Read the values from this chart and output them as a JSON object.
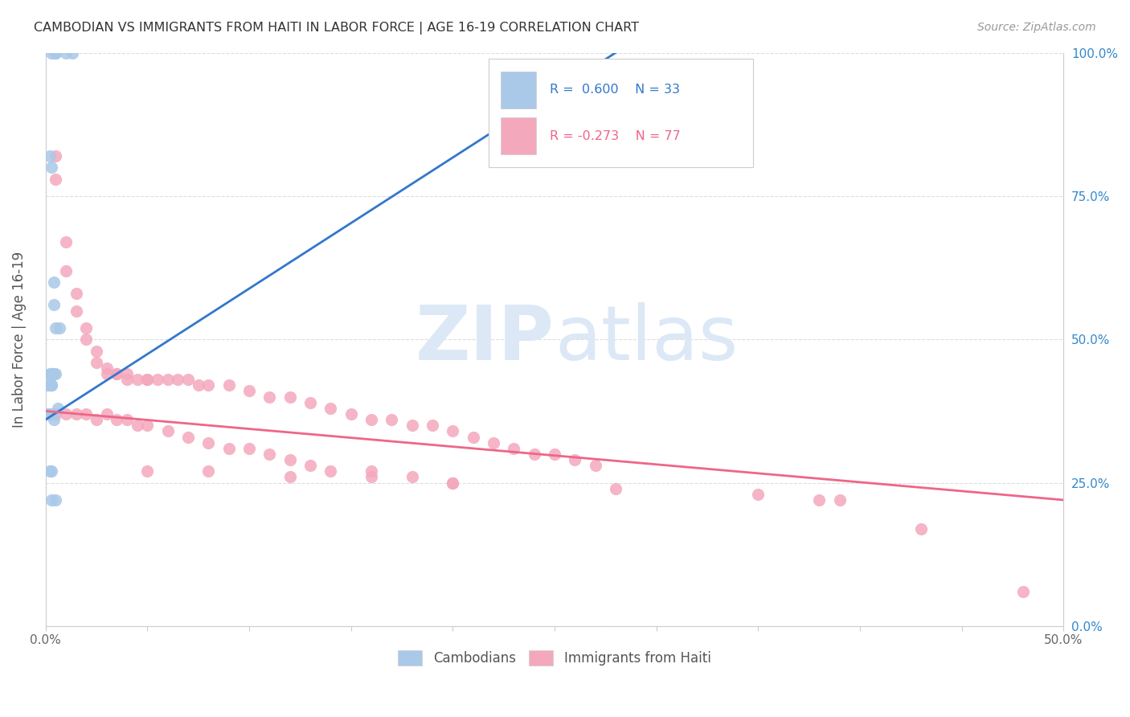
{
  "title": "CAMBODIAN VS IMMIGRANTS FROM HAITI IN LABOR FORCE | AGE 16-19 CORRELATION CHART",
  "source": "Source: ZipAtlas.com",
  "ylabel": "In Labor Force | Age 16-19",
  "xlim": [
    0.0,
    0.5
  ],
  "ylim": [
    0.0,
    1.0
  ],
  "xticks": [
    0.0,
    0.05,
    0.1,
    0.15,
    0.2,
    0.25,
    0.3,
    0.35,
    0.4,
    0.45,
    0.5
  ],
  "xtick_labels": [
    "0.0%",
    "",
    "",
    "",
    "",
    "",
    "",
    "",
    "",
    "",
    "50.0%"
  ],
  "yticks": [
    0.0,
    0.25,
    0.5,
    0.75,
    1.0
  ],
  "ytick_labels": [
    "",
    "",
    "",
    "",
    ""
  ],
  "ytick_labels_right": [
    "0.0%",
    "25.0%",
    "50.0%",
    "75.0%",
    "100.0%"
  ],
  "cambodian_color": "#aac8e8",
  "haiti_color": "#f4a8bc",
  "cambodian_line_color": "#3377cc",
  "haiti_line_color": "#ee6688",
  "legend_R_cambodian": "R =  0.600",
  "legend_N_cambodian": "N = 33",
  "legend_R_haiti": "R = -0.273",
  "legend_N_haiti": "N = 77",
  "camb_line_x0": 0.0,
  "camb_line_y0": 0.36,
  "camb_line_x1": 0.28,
  "camb_line_y1": 1.0,
  "haiti_line_x0": 0.0,
  "haiti_line_y0": 0.375,
  "haiti_line_x1": 0.5,
  "haiti_line_y1": 0.22,
  "cambodians_x": [
    0.003,
    0.005,
    0.005,
    0.01,
    0.013,
    0.002,
    0.003,
    0.004,
    0.004,
    0.005,
    0.007,
    0.002,
    0.003,
    0.003,
    0.003,
    0.004,
    0.004,
    0.005,
    0.001,
    0.002,
    0.003,
    0.003,
    0.001,
    0.002,
    0.001,
    0.002,
    0.002,
    0.003,
    0.003,
    0.004,
    0.006,
    0.005,
    0.003
  ],
  "cambodians_y": [
    1.0,
    1.0,
    1.0,
    1.0,
    1.0,
    0.82,
    0.8,
    0.6,
    0.56,
    0.52,
    0.52,
    0.44,
    0.44,
    0.44,
    0.44,
    0.44,
    0.44,
    0.44,
    0.42,
    0.42,
    0.42,
    0.42,
    0.37,
    0.37,
    0.37,
    0.37,
    0.27,
    0.27,
    0.44,
    0.36,
    0.38,
    0.22,
    0.22
  ],
  "haiti_x": [
    0.005,
    0.005,
    0.01,
    0.01,
    0.015,
    0.015,
    0.02,
    0.02,
    0.025,
    0.025,
    0.03,
    0.03,
    0.035,
    0.035,
    0.04,
    0.04,
    0.045,
    0.05,
    0.05,
    0.055,
    0.06,
    0.065,
    0.07,
    0.075,
    0.08,
    0.09,
    0.1,
    0.11,
    0.12,
    0.13,
    0.14,
    0.15,
    0.16,
    0.17,
    0.18,
    0.19,
    0.2,
    0.21,
    0.22,
    0.23,
    0.24,
    0.25,
    0.26,
    0.27,
    0.005,
    0.01,
    0.015,
    0.02,
    0.025,
    0.03,
    0.035,
    0.04,
    0.045,
    0.05,
    0.06,
    0.07,
    0.08,
    0.09,
    0.1,
    0.11,
    0.12,
    0.13,
    0.14,
    0.16,
    0.18,
    0.2,
    0.05,
    0.08,
    0.12,
    0.16,
    0.2,
    0.28,
    0.35,
    0.38,
    0.39,
    0.43,
    0.48
  ],
  "haiti_y": [
    0.82,
    0.78,
    0.67,
    0.62,
    0.58,
    0.55,
    0.52,
    0.5,
    0.48,
    0.46,
    0.45,
    0.44,
    0.44,
    0.44,
    0.44,
    0.43,
    0.43,
    0.43,
    0.43,
    0.43,
    0.43,
    0.43,
    0.43,
    0.42,
    0.42,
    0.42,
    0.41,
    0.4,
    0.4,
    0.39,
    0.38,
    0.37,
    0.36,
    0.36,
    0.35,
    0.35,
    0.34,
    0.33,
    0.32,
    0.31,
    0.3,
    0.3,
    0.29,
    0.28,
    0.37,
    0.37,
    0.37,
    0.37,
    0.36,
    0.37,
    0.36,
    0.36,
    0.35,
    0.35,
    0.34,
    0.33,
    0.32,
    0.31,
    0.31,
    0.3,
    0.29,
    0.28,
    0.27,
    0.27,
    0.26,
    0.25,
    0.27,
    0.27,
    0.26,
    0.26,
    0.25,
    0.24,
    0.23,
    0.22,
    0.22,
    0.17,
    0.06
  ]
}
